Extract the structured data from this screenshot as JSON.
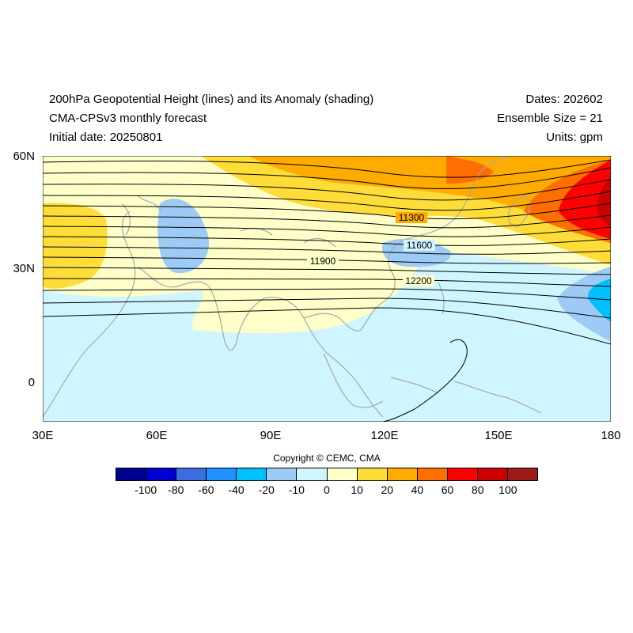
{
  "header": {
    "title": "200hPa Geopotential Height (lines) and its Anomaly (shading)",
    "subtitle": "CMA-CPSv3 monthly forecast",
    "initial_date": "Initial date: 20250801",
    "dates": "Dates: 202602",
    "ensemble": "Ensemble Size = 21",
    "units": "Units: gpm"
  },
  "map": {
    "lat_range": [
      -10,
      60
    ],
    "lon_range": [
      30,
      180
    ],
    "y_ticks": [
      "60N",
      "30N",
      "0"
    ],
    "x_ticks": [
      "30E",
      "60E",
      "90E",
      "120E",
      "150E",
      "180"
    ],
    "contour_labels": [
      "11300",
      "11600",
      "11900",
      "12200"
    ],
    "land_outline_color": "#a8a8a8",
    "contour_color": "#000000"
  },
  "colorbar": {
    "colors": [
      "#00008f",
      "#0000d0",
      "#3d6ee0",
      "#1e90ff",
      "#00bfff",
      "#9ecbf6",
      "#cff5ff",
      "#ffffc9",
      "#fedd38",
      "#ffab00",
      "#ff6e00",
      "#ff0000",
      "#cb0000",
      "#9b1a1a"
    ],
    "labels": [
      "-100",
      "-80",
      "-60",
      "-40",
      "-20",
      "-10",
      "0",
      "10",
      "20",
      "40",
      "60",
      "80",
      "100"
    ]
  },
  "copyright": "Copyright © CEMC, CMA"
}
